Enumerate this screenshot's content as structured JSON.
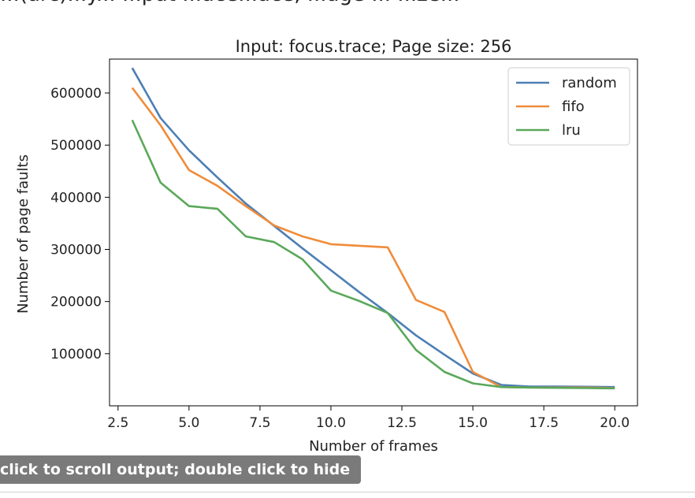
{
  "page": {
    "scroll_hint": "click to scroll output; double click to hide",
    "cropped_header_text": "...(arc)...y... ...put ...ace...ace, ...age ... ...ze..."
  },
  "chart_data": {
    "type": "line",
    "title": "Input: focus.trace; Page size: 256",
    "xlabel": "Number of frames",
    "ylabel": "Number of page faults",
    "xlim": [
      2.2,
      20.8
    ],
    "ylim": [
      0,
      665000
    ],
    "xticks": [
      2.5,
      5.0,
      7.5,
      10.0,
      12.5,
      15.0,
      17.5,
      20.0
    ],
    "xtick_labels": [
      "2.5",
      "5.0",
      "7.5",
      "10.0",
      "12.5",
      "15.0",
      "17.5",
      "20.0"
    ],
    "yticks": [
      100000,
      200000,
      300000,
      400000,
      500000,
      600000
    ],
    "ytick_labels": [
      "100000",
      "200000",
      "300000",
      "400000",
      "500000",
      "600000"
    ],
    "x": [
      3,
      4,
      5,
      6,
      7,
      8,
      9,
      10,
      11,
      12,
      13,
      14,
      15,
      16,
      17,
      18,
      19,
      20
    ],
    "series": [
      {
        "name": "random",
        "color": "#4c7fb4",
        "values": [
          648000,
          552000,
          490000,
          438000,
          388000,
          345000,
          302000,
          260000,
          218000,
          178000,
          135000,
          98000,
          62000,
          40000,
          37000,
          37000,
          36500,
          36000
        ]
      },
      {
        "name": "fifo",
        "color": "#ef8c3a",
        "values": [
          610000,
          538000,
          452000,
          422000,
          383000,
          346000,
          325000,
          310000,
          307000,
          304000,
          203000,
          180000,
          65000,
          36000,
          35000,
          35000,
          35000,
          34000
        ]
      },
      {
        "name": "lru",
        "color": "#5aa85a",
        "values": [
          548000,
          428000,
          383000,
          378000,
          325000,
          314000,
          281000,
          221000,
          201000,
          178000,
          107000,
          65000,
          43000,
          36000,
          35000,
          34500,
          34000,
          33500
        ]
      }
    ],
    "grid": false,
    "legend": "top-right"
  }
}
